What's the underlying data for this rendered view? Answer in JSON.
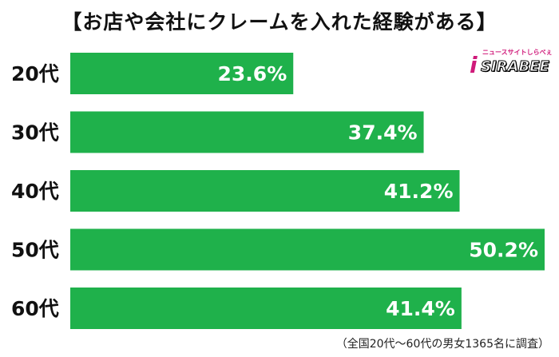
{
  "title": "【お店や会社にクレームを入れた経験がある】",
  "logo": {
    "tagline": "ニュースサイトしらべぇ",
    "mark": "i",
    "text": "SIRABEE"
  },
  "note": "（全国20代～60代の男女1365名に調査）",
  "colors": {
    "bar": "#1fb14b",
    "label": "#ffffff",
    "category": "#111111"
  },
  "chart_data": {
    "type": "bar",
    "orientation": "horizontal",
    "categories": [
      "20代",
      "30代",
      "40代",
      "50代",
      "60代"
    ],
    "values": [
      23.6,
      37.4,
      41.2,
      50.2,
      41.4
    ],
    "labels": [
      "23.6%",
      "37.4%",
      "41.2%",
      "50.2%",
      "41.4%"
    ],
    "title": "【お店や会社にクレームを入れた経験がある】",
    "xlim": [
      0,
      50.2
    ],
    "grid": false,
    "legend": "none"
  }
}
